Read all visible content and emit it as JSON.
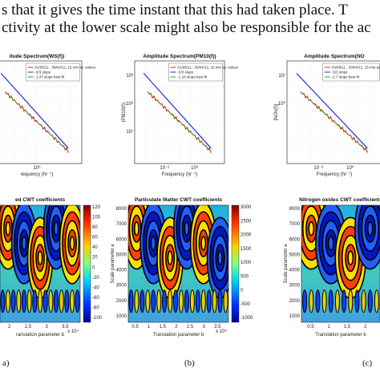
{
  "text": {
    "lines": [
      "s that it gives the time instant that this had taken place. T",
      "ctivity at the lower scale might also be responsible for the ac"
    ]
  },
  "spectra": [
    {
      "title": "itude Spectrum(WS(f))",
      "legend": [
        "01/05/11 : 30/04/12, 15 min av. values",
        "-5/3 slope",
        "-1.47 slope best fit"
      ],
      "xlabel": "requency (hr⁻¹)",
      "xticks": [
        "10⁰"
      ],
      "yticks": []
    },
    {
      "title": "Amplitude Spectrum(PM10(f))",
      "ylabel": "|PM10(f)|",
      "legend": [
        "01/05/11 : 30/04/12, 15 min av. values",
        "-5/3 slope",
        "-1.16 slope best fit"
      ],
      "xlabel": "Frequency (hr⁻¹)",
      "xticks": [
        "10⁻²",
        "10⁰"
      ],
      "yticks": [
        "10³",
        "10²",
        "10¹"
      ]
    },
    {
      "title": "Amplitude Spectrum(NO",
      "ylabel": "|NOx(f)|",
      "legend": [
        "03/05/11 : 30/04/12, 15 min av. values",
        "-5/3 slope",
        "-1.7 slope best fit"
      ],
      "xlabel": "Frequency (hr⁻¹)",
      "xticks": [
        "10⁻²",
        "10⁰"
      ],
      "yticks": [
        "10¹",
        "10⁰"
      ]
    }
  ],
  "cwt": [
    {
      "title": "ed CWT coefficients",
      "xlabel": "ranslation parameter b",
      "xticks": [
        2,
        2.5,
        3,
        3.5
      ],
      "exponent": "x 10⁴",
      "yticks": [],
      "colorbar": [
        120,
        100,
        80,
        60,
        40,
        20,
        0,
        -20,
        -40,
        -60,
        -80,
        -100
      ]
    },
    {
      "title": "Particulate Matter CWT coefficients",
      "xlabel": "Translation parameter b",
      "xticks": [
        0.5,
        1,
        1.5,
        2,
        2.5,
        3,
        3.5
      ],
      "exponent": "x 10⁴",
      "ylabel": "Scale parameter a",
      "yticks": [
        8000,
        7000,
        6000,
        5000,
        4000,
        3000,
        2000,
        1000
      ],
      "colorbar": [
        3000,
        2500,
        2000,
        1500,
        1000,
        500,
        0,
        -500,
        -1000
      ]
    },
    {
      "title": "Nitrogen oxides CWT coefficients",
      "xlabel": "Translation parameter b",
      "xticks": [
        0.5,
        1,
        1.5,
        2
      ],
      "ylabel": "Scale parameter a",
      "yticks": [
        8000,
        7000,
        6000,
        5000,
        4000,
        3000,
        2000,
        1000
      ]
    }
  ],
  "captions": [
    "a)",
    "(b)",
    "(c)"
  ]
}
